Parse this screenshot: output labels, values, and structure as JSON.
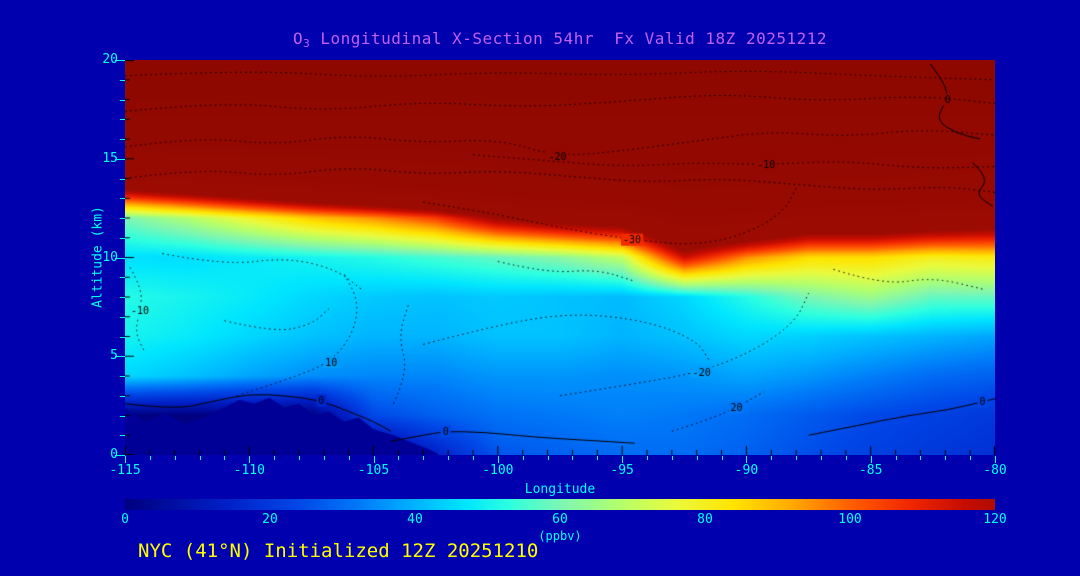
{
  "colors": {
    "background": "#0000AE",
    "title": "#C060F0",
    "axis": "#00FFFF",
    "footer": "#FFFF00",
    "contour": "#000000"
  },
  "title": {
    "prefix": "O",
    "sub": "3",
    "rest": " Longitudinal X-Section 54hr  Fx Valid 18Z 20251212"
  },
  "footer": {
    "text": "NYC (41°N) Initialized 12Z 20251210"
  },
  "axes": {
    "x": {
      "label": "Longitude",
      "min": -115,
      "max": -80,
      "major_ticks": [
        -115,
        -110,
        -105,
        -100,
        -95,
        -90,
        -85,
        -80
      ],
      "minor_step": 1
    },
    "y": {
      "label": "Altitude (km)",
      "min": 0,
      "max": 20,
      "major_ticks": [
        0,
        5,
        10,
        15,
        20
      ],
      "minor_step": 1
    }
  },
  "colorbar": {
    "label": "(ppbv)",
    "min": 0,
    "max": 120,
    "ticks": [
      0,
      20,
      40,
      60,
      80,
      100,
      120
    ]
  },
  "chart_data": {
    "type": "heatmap",
    "title": "O3 Longitudinal X-Section 54hr  Fx Valid 18Z 20251212",
    "xlabel": "Longitude",
    "ylabel": "Altitude (km)",
    "units": "ppbv",
    "xlim": [
      -115,
      -80
    ],
    "ylim": [
      0,
      20
    ],
    "colorbar_range": [
      0,
      120
    ],
    "x_lon": [
      -115,
      -112.5,
      -110,
      -107.5,
      -105,
      -102.5,
      -100,
      -97.5,
      -95,
      -92.5,
      -90,
      -87.5,
      -85,
      -82.5,
      -80
    ],
    "y_km": [
      0,
      2,
      4,
      6,
      8,
      10,
      12,
      14,
      16,
      18,
      20
    ],
    "values_note": "ozone ppbv; rows ordered by altitude ascending; values >120 saturate dark red (stratosphere)",
    "values_ppbv": [
      [
        0,
        0,
        0,
        0,
        0,
        14,
        26,
        28,
        30,
        30,
        28,
        25,
        22,
        20,
        18
      ],
      [
        0,
        0,
        0,
        0,
        24,
        28,
        31,
        32,
        33,
        32,
        30,
        27,
        24,
        22,
        20
      ],
      [
        45,
        42,
        38,
        35,
        34,
        34,
        36,
        36,
        35,
        36,
        38,
        36,
        33,
        30,
        28
      ],
      [
        50,
        48,
        45,
        42,
        40,
        40,
        42,
        42,
        40,
        42,
        45,
        44,
        42,
        40,
        38
      ],
      [
        52,
        50,
        48,
        45,
        43,
        42,
        43,
        42,
        41,
        45,
        52,
        60,
        65,
        58,
        58
      ],
      [
        46,
        46,
        48,
        50,
        52,
        55,
        58,
        62,
        70,
        115,
        95,
        85,
        85,
        80,
        82
      ],
      [
        60,
        68,
        78,
        88,
        95,
        105,
        125,
        135,
        140,
        170,
        165,
        150,
        150,
        145,
        140
      ],
      [
        150,
        160,
        170,
        180,
        190,
        200,
        210,
        220,
        230,
        240,
        235,
        230,
        225,
        220,
        215
      ],
      [
        260,
        260,
        260,
        260,
        260,
        260,
        260,
        260,
        260,
        260,
        260,
        260,
        260,
        260,
        260
      ],
      [
        300,
        300,
        300,
        300,
        300,
        300,
        300,
        300,
        300,
        300,
        300,
        300,
        300,
        300,
        300
      ],
      [
        320,
        320,
        320,
        320,
        320,
        320,
        320,
        320,
        320,
        320,
        320,
        320,
        320,
        320,
        320
      ]
    ],
    "colormap_stops": [
      [
        0,
        "#000080"
      ],
      [
        14,
        "#0020C8"
      ],
      [
        24,
        "#0048E8"
      ],
      [
        32,
        "#0078F8"
      ],
      [
        40,
        "#00B4FF"
      ],
      [
        47,
        "#00E6FF"
      ],
      [
        53,
        "#2EFFE0"
      ],
      [
        60,
        "#7CF6B4"
      ],
      [
        68,
        "#B2FF6E"
      ],
      [
        76,
        "#EAFA3C"
      ],
      [
        84,
        "#FFE400"
      ],
      [
        92,
        "#FFAA00"
      ],
      [
        100,
        "#FF6000"
      ],
      [
        108,
        "#F22800"
      ],
      [
        116,
        "#C60C00"
      ],
      [
        124,
        "#9C0B02"
      ],
      [
        320,
        "#8E0800"
      ]
    ],
    "terrain_color": "#000096",
    "terrain_polygon": [
      [
        -115,
        2.35
      ],
      [
        -114.2,
        1.7
      ],
      [
        -113.4,
        2.1
      ],
      [
        -112.6,
        1.6
      ],
      [
        -111.8,
        1.9
      ],
      [
        -111,
        2.4
      ],
      [
        -110.4,
        2.8
      ],
      [
        -109.8,
        2.6
      ],
      [
        -109.2,
        2.9
      ],
      [
        -108.6,
        2.4
      ],
      [
        -108,
        2.6
      ],
      [
        -107.4,
        2.0
      ],
      [
        -106.8,
        2.2
      ],
      [
        -106.2,
        1.7
      ],
      [
        -105.6,
        1.9
      ],
      [
        -105,
        1.3
      ],
      [
        -104.2,
        1.0
      ],
      [
        -103.4,
        0.6
      ],
      [
        -102.8,
        0.3
      ],
      [
        -102.4,
        0.05
      ]
    ],
    "contour_overlay": {
      "style_note": "black overlay contours; dotted = labeled anomaly field, solid = zero lines",
      "lines": [
        {
          "label": "-20",
          "style": "dotted",
          "label_at": [
            -97.6,
            15.1
          ],
          "points": [
            [
              -115,
              15.6
            ],
            [
              -112,
              16.1
            ],
            [
              -109,
              15.7
            ],
            [
              -106,
              16.2
            ],
            [
              -103,
              15.8
            ],
            [
              -100,
              16.0
            ],
            [
              -97.6,
              15.1
            ],
            [
              -95,
              15.4
            ],
            [
              -92,
              15.9
            ],
            [
              -89,
              16.4
            ],
            [
              -86,
              16.1
            ],
            [
              -83,
              16.5
            ],
            [
              -80,
              16.2
            ]
          ]
        },
        {
          "label": "-10",
          "style": "dotted",
          "label_at": [
            -89.2,
            14.7
          ],
          "points": [
            [
              -101,
              15.2
            ],
            [
              -98,
              14.9
            ],
            [
              -95,
              14.6
            ],
            [
              -92,
              14.8
            ],
            [
              -89.2,
              14.7
            ],
            [
              -86,
              14.9
            ],
            [
              -83,
              14.5
            ],
            [
              -80,
              14.6
            ]
          ]
        },
        {
          "label": "-30",
          "style": "dotted",
          "label_at": [
            -94.6,
            10.9
          ],
          "points": [
            [
              -103,
              12.8
            ],
            [
              -100,
              12.2
            ],
            [
              -97.5,
              11.5
            ],
            [
              -94.6,
              10.9
            ],
            [
              -92,
              10.6
            ],
            [
              -90,
              11.2
            ],
            [
              -88.5,
              12.3
            ],
            [
              -88,
              13.5
            ]
          ]
        },
        {
          "label": "-10",
          "style": "dotted",
          "label_at": [
            -114.4,
            7.3
          ],
          "points": [
            [
              -114.8,
              9.5
            ],
            [
              -114.3,
              8.4
            ],
            [
              -114.4,
              7.3
            ],
            [
              -114.6,
              6.2
            ],
            [
              -114.2,
              5.2
            ]
          ]
        },
        {
          "label": "10",
          "style": "dotted",
          "label_at": [
            -106.7,
            4.7
          ],
          "points": [
            [
              -110.5,
              3.0
            ],
            [
              -108.5,
              3.8
            ],
            [
              -106.7,
              4.7
            ],
            [
              -105.8,
              6.2
            ],
            [
              -105.6,
              7.8
            ],
            [
              -106.2,
              9.2
            ]
          ]
        },
        {
          "label": "-20",
          "style": "dotted",
          "label_at": [
            -91.8,
            4.2
          ],
          "points": [
            [
              -97.5,
              3.0
            ],
            [
              -94.5,
              3.6
            ],
            [
              -91.8,
              4.2
            ],
            [
              -89.5,
              5.4
            ],
            [
              -88,
              6.8
            ],
            [
              -87.5,
              8.2
            ]
          ]
        },
        {
          "label": "20",
          "style": "dotted",
          "label_at": [
            -90.4,
            2.4
          ],
          "points": [
            [
              -93,
              1.2
            ],
            [
              -91.5,
              1.8
            ],
            [
              -90.4,
              2.4
            ],
            [
              -89.3,
              3.2
            ]
          ]
        },
        {
          "label": "0",
          "style": "solid",
          "label_at": [
            -81.9,
            18.0
          ],
          "points": [
            [
              -82.6,
              19.8
            ],
            [
              -82.0,
              18.8
            ],
            [
              -81.9,
              18.0
            ],
            [
              -82.4,
              17.0
            ],
            [
              -81.6,
              16.3
            ],
            [
              -80.6,
              16.0
            ]
          ]
        },
        {
          "label": "",
          "style": "solid",
          "label_at": null,
          "points": [
            [
              -80.9,
              14.8
            ],
            [
              -80.2,
              14.0
            ],
            [
              -80.8,
              13.2
            ],
            [
              -80.1,
              12.6
            ]
          ]
        },
        {
          "label": "0",
          "style": "solid",
          "label_at": [
            -107.1,
            2.75
          ],
          "points": [
            [
              -115,
              2.6
            ],
            [
              -113,
              2.3
            ],
            [
              -111.5,
              2.7
            ],
            [
              -110,
              3.1
            ],
            [
              -108.5,
              3.0
            ],
            [
              -107.1,
              2.75
            ],
            [
              -106,
              2.2
            ],
            [
              -105,
              1.7
            ],
            [
              -104.3,
              1.2
            ]
          ]
        },
        {
          "label": "0",
          "style": "solid",
          "label_at": [
            -102.1,
            1.2
          ],
          "points": [
            [
              -104.3,
              0.7
            ],
            [
              -103,
              1.0
            ],
            [
              -102.1,
              1.2
            ],
            [
              -100.5,
              1.15
            ],
            [
              -98.5,
              0.9
            ],
            [
              -96.5,
              0.75
            ],
            [
              -94.5,
              0.6
            ]
          ]
        },
        {
          "label": "0",
          "style": "solid",
          "label_at": [
            -80.5,
            2.7
          ],
          "points": [
            [
              -87.5,
              1.0
            ],
            [
              -85.5,
              1.5
            ],
            [
              -83.5,
              2.0
            ],
            [
              -81.8,
              2.3
            ],
            [
              -80.5,
              2.7
            ],
            [
              -80,
              2.85
            ]
          ]
        },
        {
          "label": "",
          "style": "dotted",
          "label_at": null,
          "points": [
            [
              -115,
              14.0
            ],
            [
              -112,
              14.5
            ],
            [
              -109,
              14.1
            ],
            [
              -106,
              14.6
            ],
            [
              -103,
              14.2
            ],
            [
              -100,
              14.4
            ],
            [
              -97,
              14.1
            ],
            [
              -94,
              13.8
            ],
            [
              -91,
              14.0
            ],
            [
              -88,
              13.7
            ],
            [
              -85,
              13.4
            ],
            [
              -82,
              13.6
            ],
            [
              -80,
              13.3
            ]
          ]
        },
        {
          "label": "",
          "style": "dotted",
          "label_at": null,
          "points": [
            [
              -115,
              17.4
            ],
            [
              -111,
              17.9
            ],
            [
              -107,
              17.4
            ],
            [
              -103,
              17.9
            ],
            [
              -99,
              17.6
            ],
            [
              -95,
              17.9
            ],
            [
              -91,
              18.3
            ],
            [
              -87,
              17.9
            ],
            [
              -83,
              18.2
            ],
            [
              -80,
              17.8
            ]
          ]
        },
        {
          "label": "",
          "style": "dotted",
          "label_at": null,
          "points": [
            [
              -115,
              19.2
            ],
            [
              -110,
              19.5
            ],
            [
              -105,
              19.1
            ],
            [
              -100,
              19.4
            ],
            [
              -95,
              19.2
            ],
            [
              -90,
              19.5
            ],
            [
              -85,
              19.2
            ],
            [
              -80,
              19.0
            ]
          ]
        },
        {
          "label": "",
          "style": "dotted",
          "label_at": null,
          "points": [
            [
              -103,
              5.6
            ],
            [
              -100,
              6.6
            ],
            [
              -97,
              7.2
            ],
            [
              -94,
              6.8
            ],
            [
              -92,
              5.8
            ],
            [
              -91.5,
              4.8
            ]
          ]
        },
        {
          "label": "",
          "style": "dotted",
          "label_at": null,
          "points": [
            [
              -113.5,
              10.2
            ],
            [
              -111,
              9.6
            ],
            [
              -108.5,
              10.0
            ],
            [
              -106.5,
              9.4
            ],
            [
              -105.5,
              8.4
            ]
          ]
        },
        {
          "label": "",
          "style": "dotted",
          "label_at": null,
          "points": [
            [
              -104.2,
              2.6
            ],
            [
              -103.6,
              4.2
            ],
            [
              -104.0,
              6.0
            ],
            [
              -103.6,
              7.6
            ]
          ]
        },
        {
          "label": "",
          "style": "dotted",
          "label_at": null,
          "points": [
            [
              -86.5,
              9.4
            ],
            [
              -84.5,
              8.6
            ],
            [
              -82.5,
              9.0
            ],
            [
              -80.5,
              8.4
            ]
          ]
        },
        {
          "label": "",
          "style": "dotted",
          "label_at": null,
          "points": [
            [
              -100,
              9.8
            ],
            [
              -98,
              9.2
            ],
            [
              -96,
              9.4
            ],
            [
              -94.5,
              8.8
            ]
          ]
        },
        {
          "label": "",
          "style": "dotted",
          "label_at": null,
          "points": [
            [
              -111,
              6.8
            ],
            [
              -109,
              6.2
            ],
            [
              -107.5,
              6.6
            ],
            [
              -106.8,
              7.4
            ]
          ]
        }
      ]
    }
  }
}
